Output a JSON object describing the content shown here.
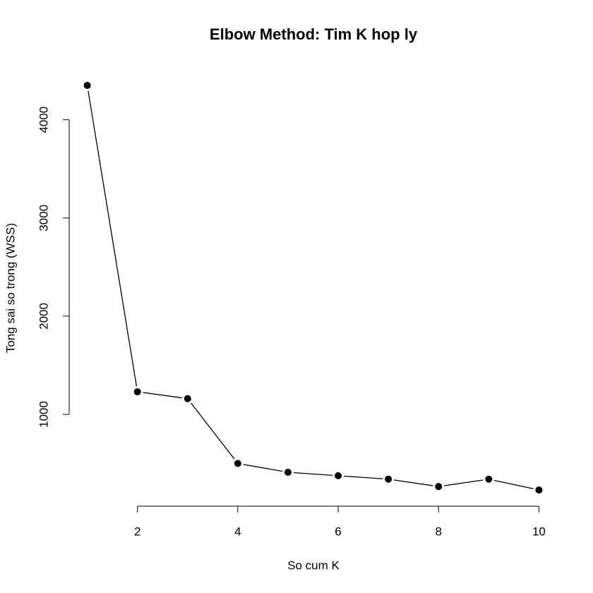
{
  "chart_data": {
    "type": "line",
    "title": "Elbow Method: Tim K hop ly",
    "x_label": "So cum K",
    "y_label": "Tong sai so trong (WSS)",
    "x": [
      1,
      2,
      3,
      4,
      5,
      6,
      7,
      8,
      9,
      10
    ],
    "values": [
      4350,
      1230,
      1160,
      500,
      410,
      375,
      340,
      265,
      340,
      230
    ],
    "color": "#000000",
    "xlim": [
      0.64,
      10.36
    ],
    "ylim": [
      65,
      4515
    ],
    "xticks": [
      2,
      4,
      6,
      8,
      10
    ],
    "yticks": [
      1000,
      2000,
      3000,
      4000
    ],
    "grid": false
  }
}
